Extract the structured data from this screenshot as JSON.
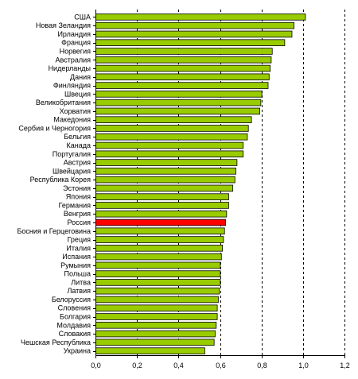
{
  "chart_data": {
    "type": "bar",
    "orientation": "horizontal",
    "categories": [
      "США",
      "Новая Зеландия",
      "Ирландия",
      "Франция",
      "Норвегия",
      "Австралия",
      "Нидерланды",
      "Дания",
      "Финляндия",
      "Швеция",
      "Великобритания",
      "Хорватия",
      "Македония",
      "Сербия и Черногория",
      "Бельгия",
      "Канада",
      "Португалия",
      "Австрия",
      "Швейцария",
      "Республика Корея",
      "Эстония",
      "Япония",
      "Германия",
      "Венгрия",
      "Россия",
      "Босния и Герцеговина",
      "Греция",
      "Италия",
      "Испания",
      "Румыния",
      "Польша",
      "Литва",
      "Латвия",
      "Белоруссия",
      "Словения",
      "Болгария",
      "Молдавия",
      "Словакия",
      "Чешская Республика",
      "Украина"
    ],
    "values": [
      1.01,
      0.955,
      0.945,
      0.91,
      0.85,
      0.845,
      0.84,
      0.835,
      0.83,
      0.8,
      0.795,
      0.79,
      0.75,
      0.735,
      0.73,
      0.71,
      0.71,
      0.68,
      0.675,
      0.67,
      0.66,
      0.64,
      0.64,
      0.63,
      0.625,
      0.62,
      0.615,
      0.61,
      0.605,
      0.6,
      0.6,
      0.6,
      0.595,
      0.59,
      0.585,
      0.585,
      0.58,
      0.575,
      0.57,
      0.525
    ],
    "highlight_category": "Россия",
    "xlim": [
      0,
      1.2
    ],
    "x_ticks": [
      "0,0",
      "0,2",
      "0,4",
      "0,6",
      "0,8",
      "1,0",
      "1,2"
    ],
    "grid": "vertical dashed",
    "title": "",
    "xlabel": "",
    "ylabel": "",
    "colors": {
      "bar": "#99cc00",
      "highlight": "#ff0000",
      "outline": "#000000",
      "grid": "#000000"
    }
  }
}
